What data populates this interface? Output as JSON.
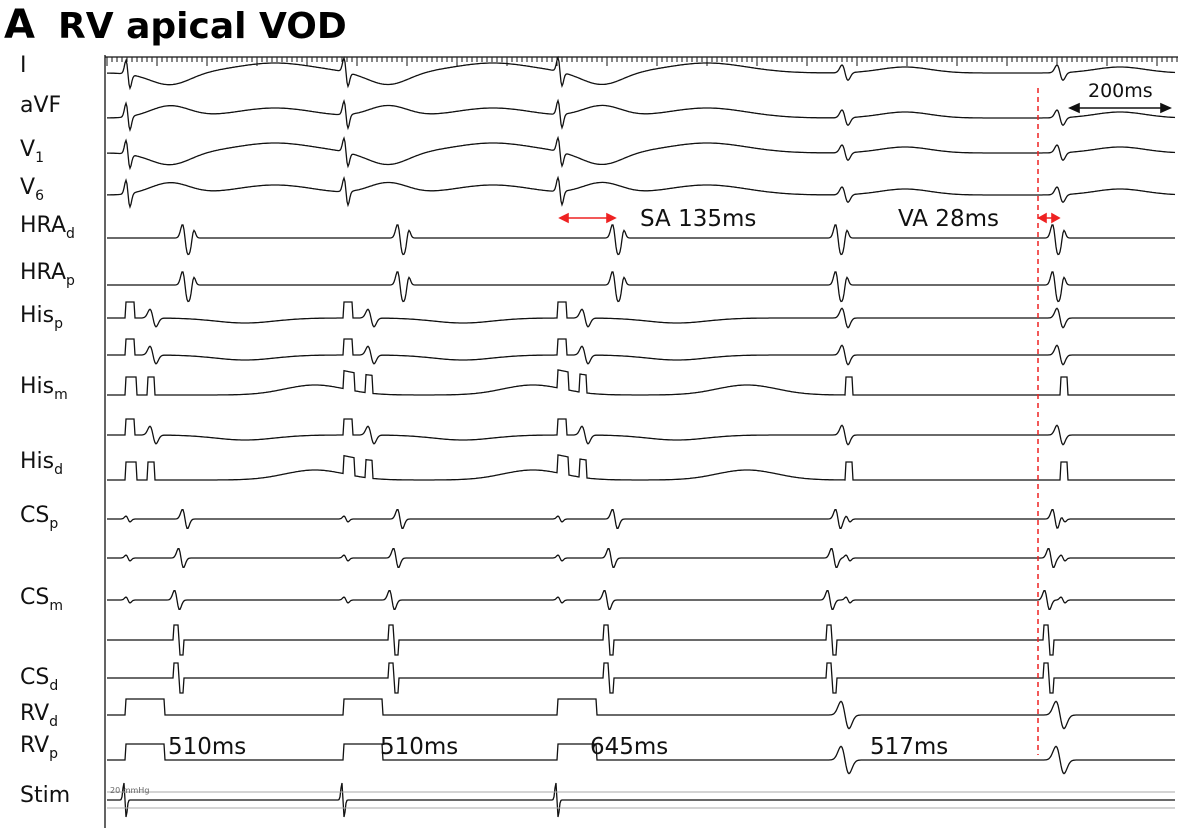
{
  "panel": {
    "letter": "A",
    "title": "RV apical VOD"
  },
  "channels": [
    {
      "text": "I"
    },
    {
      "text": "aVF"
    },
    {
      "text": "V",
      "sub": "1"
    },
    {
      "text": "V",
      "sub": "6"
    },
    {
      "text": "HRA",
      "sub": "d"
    },
    {
      "text": "HRA",
      "sub": "p"
    },
    {
      "text": "His",
      "sub": "p"
    },
    {
      "text": "His",
      "sub": "m"
    },
    {
      "text": "His",
      "sub": "d"
    },
    {
      "text": "CS",
      "sub": "p"
    },
    {
      "text": "CS",
      "sub": "m"
    },
    {
      "text": "CS",
      "sub": "d"
    },
    {
      "text": "RV",
      "sub": "d"
    },
    {
      "text": "RV",
      "sub": "p"
    },
    {
      "text": "Stim"
    }
  ],
  "annotations": {
    "sa": "SA 135ms",
    "va": "VA 28ms",
    "scale": "200ms",
    "pressure": "20 mmHg"
  },
  "intervals": [
    "510ms",
    "510ms",
    "645ms",
    "517ms"
  ]
}
